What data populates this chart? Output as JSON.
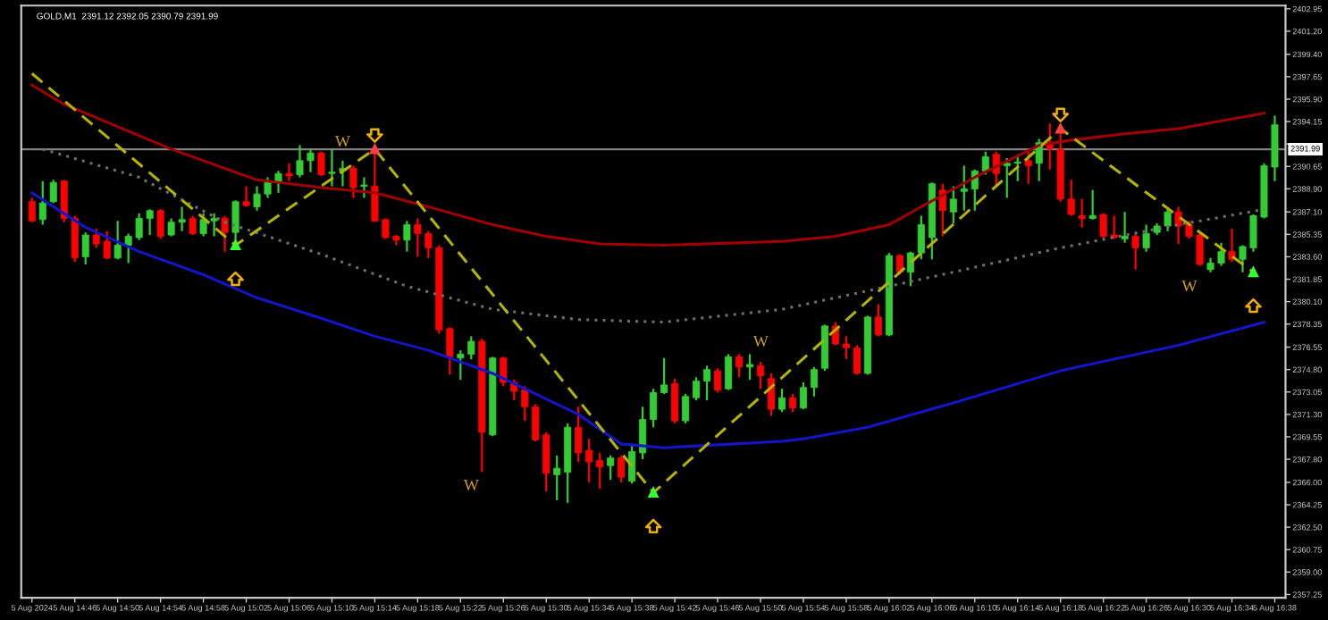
{
  "chart_data": {
    "type": "candlestick",
    "title": "GOLD,M1  2391.12 2392.05 2390.79 2391.99",
    "x": [
      "2024-08-05T14:42",
      "2024-08-05T14:43",
      "2024-08-05T14:44",
      "2024-08-05T14:45",
      "2024-08-05T14:46",
      "2024-08-05T14:47",
      "2024-08-05T14:48",
      "2024-08-05T14:49",
      "2024-08-05T14:50",
      "2024-08-05T14:51",
      "2024-08-05T14:52",
      "2024-08-05T14:53",
      "2024-08-05T14:54",
      "2024-08-05T14:55",
      "2024-08-05T14:56",
      "2024-08-05T14:57",
      "2024-08-05T14:58",
      "2024-08-05T14:59",
      "2024-08-05T15:00",
      "2024-08-05T15:01",
      "2024-08-05T15:02",
      "2024-08-05T15:03",
      "2024-08-05T15:04",
      "2024-08-05T15:05",
      "2024-08-05T15:06",
      "2024-08-05T15:07",
      "2024-08-05T15:08",
      "2024-08-05T15:09",
      "2024-08-05T15:10",
      "2024-08-05T15:11",
      "2024-08-05T15:12",
      "2024-08-05T15:13",
      "2024-08-05T15:14",
      "2024-08-05T15:15",
      "2024-08-05T15:16",
      "2024-08-05T15:17",
      "2024-08-05T15:18",
      "2024-08-05T15:19",
      "2024-08-05T15:20",
      "2024-08-05T15:21",
      "2024-08-05T15:22",
      "2024-08-05T15:23",
      "2024-08-05T15:24",
      "2024-08-05T15:25",
      "2024-08-05T15:26",
      "2024-08-05T15:27",
      "2024-08-05T15:28",
      "2024-08-05T15:29",
      "2024-08-05T15:30",
      "2024-08-05T15:31",
      "2024-08-05T15:32",
      "2024-08-05T15:33",
      "2024-08-05T15:34",
      "2024-08-05T15:35",
      "2024-08-05T15:36",
      "2024-08-05T15:37",
      "2024-08-05T15:38",
      "2024-08-05T15:39",
      "2024-08-05T15:40",
      "2024-08-05T15:41",
      "2024-08-05T15:42",
      "2024-08-05T15:43",
      "2024-08-05T15:44",
      "2024-08-05T15:45",
      "2024-08-05T15:46",
      "2024-08-05T15:47",
      "2024-08-05T15:48",
      "2024-08-05T15:49",
      "2024-08-05T15:50",
      "2024-08-05T15:51",
      "2024-08-05T15:52",
      "2024-08-05T15:53",
      "2024-08-05T15:54",
      "2024-08-05T15:55",
      "2024-08-05T15:56",
      "2024-08-05T15:57",
      "2024-08-05T15:58",
      "2024-08-05T15:59",
      "2024-08-05T16:00",
      "2024-08-05T16:01",
      "2024-08-05T16:02",
      "2024-08-05T16:03",
      "2024-08-05T16:04",
      "2024-08-05T16:05",
      "2024-08-05T16:06",
      "2024-08-05T16:07",
      "2024-08-05T16:08",
      "2024-08-05T16:09",
      "2024-08-05T16:10",
      "2024-08-05T16:11",
      "2024-08-05T16:12",
      "2024-08-05T16:13",
      "2024-08-05T16:14",
      "2024-08-05T16:15",
      "2024-08-05T16:16",
      "2024-08-05T16:17",
      "2024-08-05T16:18",
      "2024-08-05T16:19",
      "2024-08-05T16:20",
      "2024-08-05T16:21",
      "2024-08-05T16:22",
      "2024-08-05T16:23",
      "2024-08-05T16:24",
      "2024-08-05T16:25",
      "2024-08-05T16:26",
      "2024-08-05T16:27",
      "2024-08-05T16:28",
      "2024-08-05T16:29",
      "2024-08-05T16:30",
      "2024-08-05T16:31",
      "2024-08-05T16:32",
      "2024-08-05T16:33",
      "2024-08-05T16:34",
      "2024-08-05T16:35",
      "2024-08-05T16:36",
      "2024-08-05T16:37",
      "2024-08-05T16:38"
    ],
    "ohlc": [
      [
        2387.9,
        2388.2,
        2386.3,
        2386.4
      ],
      [
        2386.5,
        2389.5,
        2386.1,
        2387.8
      ],
      [
        2387.9,
        2389.6,
        2387.8,
        2389.4
      ],
      [
        2389.5,
        2389.6,
        2386.3,
        2386.6
      ],
      [
        2386.6,
        2386.8,
        2383.2,
        2383.5
      ],
      [
        2383.6,
        2385.5,
        2383.0,
        2385.3
      ],
      [
        2385.3,
        2385.8,
        2384.3,
        2384.6
      ],
      [
        2384.8,
        2385.6,
        2383.4,
        2383.5
      ],
      [
        2383.5,
        2386.4,
        2383.4,
        2384.5
      ],
      [
        2384.5,
        2385.4,
        2383.1,
        2385.2
      ],
      [
        2385.1,
        2387.0,
        2384.9,
        2386.6
      ],
      [
        2386.6,
        2387.3,
        2385.3,
        2387.2
      ],
      [
        2387.2,
        2387.3,
        2385.0,
        2385.2
      ],
      [
        2385.3,
        2386.6,
        2385.2,
        2386.3
      ],
      [
        2386.3,
        2387.5,
        2385.6,
        2386.5
      ],
      [
        2386.6,
        2386.8,
        2385.3,
        2385.4
      ],
      [
        2385.4,
        2387.0,
        2385.2,
        2386.5
      ],
      [
        2386.4,
        2387.0,
        2385.2,
        2386.6
      ],
      [
        2386.6,
        2386.8,
        2384.0,
        2385.5
      ],
      [
        2385.5,
        2388.0,
        2384.3,
        2387.9
      ],
      [
        2387.9,
        2389.1,
        2387.5,
        2387.6
      ],
      [
        2387.5,
        2389.1,
        2387.2,
        2388.5
      ],
      [
        2388.5,
        2389.8,
        2388.2,
        2389.4
      ],
      [
        2389.4,
        2390.3,
        2388.6,
        2390.1
      ],
      [
        2390.1,
        2390.9,
        2389.5,
        2389.9
      ],
      [
        2390.0,
        2392.3,
        2389.8,
        2391.1
      ],
      [
        2391.1,
        2392.0,
        2390.2,
        2391.7
      ],
      [
        2391.7,
        2391.8,
        2389.9,
        2390.0
      ],
      [
        2390.1,
        2392.0,
        2389.1,
        2390.2
      ],
      [
        2390.3,
        2391.1,
        2389.1,
        2390.5
      ],
      [
        2390.5,
        2390.7,
        2388.2,
        2389.0
      ],
      [
        2389.1,
        2389.8,
        2388.2,
        2389.2
      ],
      [
        2389.1,
        2392.0,
        2386.3,
        2386.4
      ],
      [
        2386.5,
        2386.6,
        2385.0,
        2385.1
      ],
      [
        2385.2,
        2385.3,
        2384.5,
        2384.9
      ],
      [
        2384.9,
        2386.4,
        2384.0,
        2386.1
      ],
      [
        2386.1,
        2386.6,
        2383.6,
        2385.4
      ],
      [
        2385.4,
        2385.6,
        2383.5,
        2384.3
      ],
      [
        2384.3,
        2384.5,
        2377.6,
        2377.9
      ],
      [
        2378.0,
        2378.1,
        2374.4,
        2375.8
      ],
      [
        2375.7,
        2376.3,
        2374.0,
        2376.0
      ],
      [
        2376.0,
        2377.4,
        2375.6,
        2377.0
      ],
      [
        2377.0,
        2377.2,
        2366.8,
        2369.9
      ],
      [
        2369.7,
        2375.8,
        2369.6,
        2375.7
      ],
      [
        2375.7,
        2375.8,
        2373.5,
        2373.8
      ],
      [
        2373.8,
        2374.0,
        2372.4,
        2373.1
      ],
      [
        2373.2,
        2373.5,
        2370.8,
        2371.9
      ],
      [
        2371.9,
        2372.1,
        2369.2,
        2369.3
      ],
      [
        2369.7,
        2369.9,
        2365.3,
        2366.7
      ],
      [
        2366.6,
        2368.1,
        2364.6,
        2367.1
      ],
      [
        2366.8,
        2370.6,
        2364.4,
        2370.3
      ],
      [
        2370.3,
        2371.9,
        2367.6,
        2368.3
      ],
      [
        2368.5,
        2369.4,
        2366.0,
        2367.6
      ],
      [
        2367.7,
        2368.3,
        2365.5,
        2367.2
      ],
      [
        2367.3,
        2368.1,
        2366.2,
        2367.9
      ],
      [
        2367.9,
        2368.1,
        2366.0,
        2366.4
      ],
      [
        2366.1,
        2369.0,
        2365.9,
        2368.4
      ],
      [
        2368.3,
        2371.9,
        2367.8,
        2370.9
      ],
      [
        2370.9,
        2373.3,
        2370.3,
        2373.0
      ],
      [
        2373.0,
        2375.7,
        2372.9,
        2373.6
      ],
      [
        2373.7,
        2374.1,
        2370.6,
        2370.8
      ],
      [
        2370.8,
        2372.9,
        2370.6,
        2372.7
      ],
      [
        2372.6,
        2374.2,
        2372.4,
        2373.9
      ],
      [
        2373.9,
        2375.1,
        2372.4,
        2374.8
      ],
      [
        2374.7,
        2374.9,
        2373.0,
        2373.2
      ],
      [
        2373.3,
        2376.0,
        2373.2,
        2375.8
      ],
      [
        2375.8,
        2376.0,
        2374.2,
        2375.0
      ],
      [
        2375.0,
        2376.0,
        2374.0,
        2375.2
      ],
      [
        2375.1,
        2375.4,
        2373.3,
        2374.3
      ],
      [
        2374.1,
        2374.5,
        2371.2,
        2371.7
      ],
      [
        2371.7,
        2373.3,
        2371.5,
        2372.6
      ],
      [
        2372.6,
        2372.9,
        2371.5,
        2371.8
      ],
      [
        2371.8,
        2373.8,
        2371.7,
        2373.4
      ],
      [
        2373.4,
        2375.0,
        2372.7,
        2374.8
      ],
      [
        2374.9,
        2378.3,
        2374.7,
        2378.2
      ],
      [
        2378.2,
        2378.5,
        2376.7,
        2376.8
      ],
      [
        2376.8,
        2377.4,
        2375.6,
        2376.5
      ],
      [
        2376.5,
        2376.7,
        2374.4,
        2374.5
      ],
      [
        2374.5,
        2379.0,
        2374.4,
        2378.9
      ],
      [
        2378.9,
        2379.9,
        2377.4,
        2377.5
      ],
      [
        2377.5,
        2383.9,
        2377.4,
        2383.7
      ],
      [
        2383.7,
        2383.8,
        2382.2,
        2382.4
      ],
      [
        2382.4,
        2384.0,
        2381.3,
        2383.9
      ],
      [
        2383.9,
        2386.8,
        2383.4,
        2386.1
      ],
      [
        2385.1,
        2389.4,
        2383.4,
        2389.3
      ],
      [
        2388.8,
        2389.3,
        2385.2,
        2387.2
      ],
      [
        2387.1,
        2389.1,
        2386.2,
        2388.1
      ],
      [
        2388.7,
        2390.7,
        2387.2,
        2388.9
      ],
      [
        2388.9,
        2390.4,
        2387.2,
        2390.3
      ],
      [
        2390.3,
        2391.8,
        2390.0,
        2391.4
      ],
      [
        2391.6,
        2391.8,
        2389.1,
        2390.1
      ],
      [
        2390.7,
        2391.3,
        2388.2,
        2390.9
      ],
      [
        2390.9,
        2391.6,
        2389.5,
        2391.0
      ],
      [
        2391.1,
        2392.0,
        2389.3,
        2390.7
      ],
      [
        2390.9,
        2392.8,
        2389.5,
        2392.5
      ],
      [
        2392.5,
        2394.0,
        2390.4,
        2392.0
      ],
      [
        2392.0,
        2393.6,
        2387.9,
        2388.1
      ],
      [
        2388.1,
        2389.6,
        2386.8,
        2386.9
      ],
      [
        2386.8,
        2388.1,
        2385.9,
        2386.6
      ],
      [
        2386.6,
        2388.8,
        2386.5,
        2386.8
      ],
      [
        2386.9,
        2387.0,
        2385.0,
        2385.2
      ],
      [
        2385.3,
        2386.8,
        2385.0,
        2385.1
      ],
      [
        2385.0,
        2387.1,
        2384.7,
        2385.2
      ],
      [
        2385.2,
        2385.4,
        2382.6,
        2384.3
      ],
      [
        2384.3,
        2386.1,
        2384.0,
        2385.4
      ],
      [
        2385.5,
        2386.2,
        2385.3,
        2386.0
      ],
      [
        2386.0,
        2387.3,
        2385.6,
        2387.1
      ],
      [
        2387.1,
        2387.5,
        2384.6,
        2386.0
      ],
      [
        2386.1,
        2386.4,
        2385.0,
        2385.2
      ],
      [
        2385.3,
        2385.4,
        2382.9,
        2383.0
      ],
      [
        2382.6,
        2383.5,
        2382.4,
        2383.1
      ],
      [
        2383.1,
        2384.7,
        2382.9,
        2384.0
      ],
      [
        2384.0,
        2385.8,
        2383.2,
        2383.4
      ],
      [
        2383.4,
        2384.5,
        2382.4,
        2384.4
      ],
      [
        2384.3,
        2386.9,
        2384.0,
        2386.8
      ],
      [
        2386.7,
        2390.9,
        2386.6,
        2390.7
      ],
      [
        2390.6,
        2394.6,
        2389.5,
        2393.9
      ]
    ],
    "colors": [
      "#ff0000",
      "#32cd32",
      "#32cd32",
      "#ff0000",
      "#ff0000",
      "#32cd32",
      "#ff0000",
      "#ff0000",
      "#32cd32",
      "#32cd32",
      "#32cd32",
      "#32cd32",
      "#ff0000",
      "#32cd32",
      "#32cd32",
      "#ff0000",
      "#32cd32",
      "#32cd32",
      "#ff0000",
      "#32cd32",
      "#ff0000",
      "#32cd32",
      "#32cd32",
      "#32cd32",
      "#ff0000",
      "#32cd32",
      "#32cd32",
      "#ff0000",
      "#32cd32",
      "#32cd32",
      "#ff0000",
      "#32cd32",
      "#ff0000",
      "#ff0000",
      "#ff0000",
      "#32cd32",
      "#ff0000",
      "#ff0000",
      "#ff0000",
      "#ff0000",
      "#32cd32",
      "#32cd32",
      "#ff0000",
      "#32cd32",
      "#ff0000",
      "#ff0000",
      "#ff0000",
      "#ff0000",
      "#ff0000",
      "#32cd32",
      "#32cd32",
      "#ff0000",
      "#ff0000",
      "#ff0000",
      "#32cd32",
      "#ff0000",
      "#32cd32",
      "#32cd32",
      "#32cd32",
      "#32cd32",
      "#ff0000",
      "#32cd32",
      "#32cd32",
      "#32cd32",
      "#ff0000",
      "#32cd32",
      "#ff0000",
      "#32cd32",
      "#ff0000",
      "#ff0000",
      "#32cd32",
      "#ff0000",
      "#32cd32",
      "#32cd32",
      "#32cd32",
      "#ff0000",
      "#ff0000",
      "#ff0000",
      "#32cd32",
      "#ff0000",
      "#32cd32",
      "#ff0000",
      "#32cd32",
      "#32cd32",
      "#32cd32",
      "#ff0000",
      "#32cd32",
      "#32cd32",
      "#32cd32",
      "#32cd32",
      "#ff0000",
      "#32cd32",
      "#32cd32",
      "#ff0000",
      "#32cd32",
      "#ff0000",
      "#ff0000",
      "#ff0000",
      "#ff0000",
      "#32cd32",
      "#ff0000",
      "#ff0000",
      "#32cd32",
      "#ff0000",
      "#32cd32",
      "#32cd32",
      "#32cd32",
      "#ff0000",
      "#ff0000",
      "#ff0000",
      "#32cd32",
      "#32cd32",
      "#ff0000",
      "#32cd32",
      "#32cd32",
      "#32cd32",
      "#32cd32"
    ],
    "series": [
      {
        "type": "line",
        "color": "#a00000",
        "line_style": "solid",
        "x": [
          "2024-08-05T14:42",
          "2024-08-05T14:45",
          "2024-08-05T14:55",
          "2024-08-05T15:03",
          "2024-08-05T15:09",
          "2024-08-05T15:14",
          "2024-08-05T15:19",
          "2024-08-05T15:25",
          "2024-08-05T15:30",
          "2024-08-05T15:35",
          "2024-08-05T15:41",
          "2024-08-05T15:52",
          "2024-08-05T15:57",
          "2024-08-05T16:02",
          "2024-08-05T16:05",
          "2024-08-05T16:10",
          "2024-08-05T16:16",
          "2024-08-05T16:19",
          "2024-08-05T16:24",
          "2024-08-05T16:29",
          "2024-08-05T16:37"
        ],
        "values": [
          2397.0,
          2395.5,
          2392.0,
          2389.6,
          2389.0,
          2388.6,
          2387.5,
          2386.1,
          2385.2,
          2384.6,
          2384.5,
          2384.8,
          2385.2,
          2386.1,
          2387.5,
          2389.8,
          2392.3,
          2392.7,
          2393.2,
          2393.6,
          2394.8
        ]
      },
      {
        "type": "line",
        "color": "#1414c8",
        "line_style": "solid",
        "x": [
          "2024-08-05T14:42",
          "2024-08-05T14:47",
          "2024-08-05T14:52",
          "2024-08-05T14:58",
          "2024-08-05T15:03",
          "2024-08-05T15:09",
          "2024-08-05T15:14",
          "2024-08-05T15:19",
          "2024-08-05T15:25",
          "2024-08-05T15:28",
          "2024-08-05T15:33",
          "2024-08-05T15:37",
          "2024-08-05T15:41",
          "2024-08-05T15:52",
          "2024-08-05T15:54",
          "2024-08-05T16:00",
          "2024-08-05T16:08",
          "2024-08-05T16:18",
          "2024-08-05T16:29",
          "2024-08-05T16:37"
        ],
        "values": [
          2388.6,
          2385.9,
          2384.0,
          2382.2,
          2380.4,
          2378.8,
          2377.4,
          2376.3,
          2374.5,
          2373.3,
          2371.3,
          2369.0,
          2368.7,
          2369.2,
          2369.4,
          2370.3,
          2372.2,
          2374.7,
          2376.7,
          2378.5
        ]
      },
      {
        "type": "line",
        "color": "#6e6e6e",
        "line_style": "dotted",
        "x": [
          "2024-08-05T14:43",
          "2024-08-05T14:52",
          "2024-08-05T15:00",
          "2024-08-05T15:09",
          "2024-08-05T15:17",
          "2024-08-05T15:25",
          "2024-08-05T15:33",
          "2024-08-05T15:41",
          "2024-08-05T15:52",
          "2024-08-05T16:02",
          "2024-08-05T16:08",
          "2024-08-05T16:18",
          "2024-08-05T16:29",
          "2024-08-05T16:37"
        ],
        "values": [
          2392.0,
          2389.8,
          2386.3,
          2383.8,
          2381.3,
          2379.5,
          2378.7,
          2378.5,
          2379.5,
          2381.3,
          2382.4,
          2384.3,
          2386.1,
          2387.3
        ]
      },
      {
        "type": "line",
        "color": "#b4b400",
        "line_style": "dashed",
        "marker": "triangle",
        "x": [
          "2024-08-05T14:42",
          "2024-08-05T15:01",
          "2024-08-05T15:14",
          "2024-08-05T15:40",
          "2024-08-05T16:18",
          "2024-08-05T16:36"
        ],
        "values": [
          2397.9,
          2384.5,
          2392.0,
          2365.2,
          2393.6,
          2382.4
        ]
      }
    ],
    "ref_lines": [
      {
        "axis": "y",
        "value": 2391.99,
        "label": "2391.99",
        "color": "#808080"
      }
    ],
    "annotations": [
      {
        "text": "W",
        "x": "2024-08-05T15:11",
        "y": 2392.5
      },
      "W",
      "W",
      "W"
    ],
    "xlim": [
      "2024-08-05T14:41",
      "2024-08-05T16:39"
    ],
    "xticks": [
      {
        "value": "2024-08-05T14:42",
        "label": "5 Aug 2024"
      },
      {
        "value": "2024-08-05T14:46",
        "label": "5 Aug 14:46"
      },
      {
        "value": "2024-08-05T14:50",
        "label": "5 Aug 14:50"
      },
      {
        "value": "2024-08-05T14:54",
        "label": "5 Aug 14:54"
      },
      {
        "value": "2024-08-05T14:58",
        "label": "5 Aug 14:58"
      },
      {
        "value": "2024-08-05T15:02",
        "label": "5 Aug 15:02"
      },
      {
        "value": "2024-08-05T15:06",
        "label": "5 Aug 15:06"
      },
      {
        "value": "2024-08-05T15:10",
        "label": "5 Aug 15:10"
      },
      {
        "value": "2024-08-05T15:14",
        "label": "5 Aug 15:14"
      },
      {
        "value": "2024-08-05T15:18",
        "label": "5 Aug 15:18"
      },
      {
        "value": "2024-08-05T15:22",
        "label": "5 Aug 15:22"
      },
      {
        "value": "2024-08-05T15:26",
        "label": "5 Aug 15:26"
      },
      {
        "value": "2024-08-05T15:30",
        "label": "5 Aug 15:30"
      },
      {
        "value": "2024-08-05T15:34",
        "label": "5 Aug 15:34"
      },
      {
        "value": "2024-08-05T15:38",
        "label": "5 Aug 15:38"
      },
      {
        "value": "2024-08-05T15:42",
        "label": "5 Aug 15:42"
      },
      {
        "value": "2024-08-05T15:46",
        "label": "5 Aug 15:46"
      },
      {
        "value": "2024-08-05T15:50",
        "label": "5 Aug 15:50"
      },
      {
        "value": "2024-08-05T15:54",
        "label": "5 Aug 15:54"
      },
      {
        "value": "2024-08-05T15:58",
        "label": "5 Aug 15:58"
      },
      {
        "value": "2024-08-05T16:02",
        "label": "5 Aug 16:02"
      },
      {
        "value": "2024-08-05T16:06",
        "label": "5 Aug 16:06"
      },
      {
        "value": "2024-08-05T16:10",
        "label": "5 Aug 16:10"
      },
      {
        "value": "2024-08-05T16:14",
        "label": "5 Aug 16:14"
      },
      {
        "value": "2024-08-05T16:18",
        "label": "5 Aug 16:18"
      },
      {
        "value": "2024-08-05T16:22",
        "label": "5 Aug 16:22"
      },
      {
        "value": "2024-08-05T16:26",
        "label": "5 Aug 16:26"
      },
      {
        "value": "2024-08-05T16:30",
        "label": "5 Aug 16:30"
      },
      {
        "value": "2024-08-05T16:34",
        "label": "5 Aug 16:34"
      },
      {
        "value": "2024-08-05T16:38",
        "label": "5 Aug 16:38"
      }
    ],
    "ylim": [
      2357.0,
      2403.2
    ],
    "yticks": [
      {
        "value": 2402.95,
        "label": "2402.95"
      },
      {
        "value": 2401.2,
        "label": "2401.20"
      },
      {
        "value": 2399.4,
        "label": "2399.40"
      },
      {
        "value": 2397.65,
        "label": "2397.65"
      },
      {
        "value": 2395.9,
        "label": "2395.90"
      },
      {
        "value": 2394.15,
        "label": "2394.15"
      },
      {
        "value": 2392.4,
        "label": null
      },
      {
        "value": 2390.65,
        "label": "2390.65"
      },
      {
        "value": 2388.9,
        "label": "2388.90"
      },
      {
        "value": 2387.1,
        "label": "2387.10"
      },
      {
        "value": 2385.35,
        "label": "2385.35"
      },
      {
        "value": 2383.6,
        "label": "2383.60"
      },
      {
        "value": 2381.85,
        "label": "2381.85"
      },
      {
        "value": 2380.1,
        "label": "2380.10"
      },
      {
        "value": 2378.35,
        "label": "2378.35"
      },
      {
        "value": 2376.55,
        "label": "2376.55"
      },
      {
        "value": 2374.8,
        "label": "2374.80"
      },
      {
        "value": 2373.05,
        "label": "2373.05"
      },
      {
        "value": 2371.3,
        "label": "2371.30"
      },
      {
        "value": 2369.55,
        "label": "2369.55"
      },
      {
        "value": 2367.8,
        "label": "2367.80"
      },
      {
        "value": 2366,
        "label": "2366.00"
      },
      {
        "value": 2364.25,
        "label": "2364.25"
      },
      {
        "value": 2362.5,
        "label": "2362.50"
      },
      {
        "value": 2360.75,
        "label": "2360.75"
      },
      {
        "value": 2359,
        "label": "2359.00"
      },
      {
        "value": 2357.25,
        "label": "2357.25"
      }
    ],
    "grid": false
  }
}
